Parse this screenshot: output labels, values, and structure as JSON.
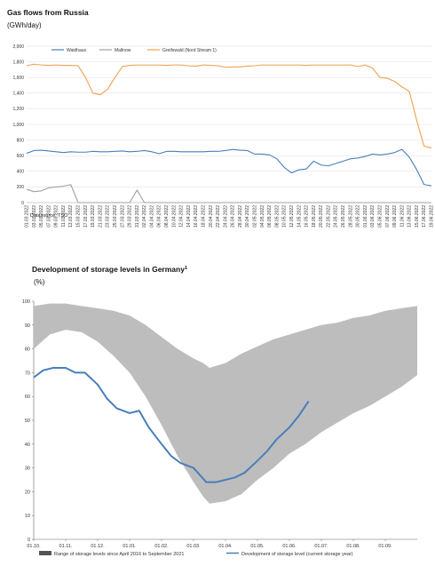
{
  "chart_data": [
    {
      "type": "line",
      "title": "Gas flows from Russia",
      "subtitle": "(GWh/day)",
      "source": "Datasource: TSO",
      "ylim": [
        0,
        2000
      ],
      "y_ticks": [
        "2,000",
        "1,800",
        "1,600",
        "1,400",
        "1,200",
        "1,000",
        "800",
        "600",
        "400",
        "200",
        "0"
      ],
      "y_tick_values": [
        2000,
        1800,
        1600,
        1400,
        1200,
        1000,
        800,
        600,
        400,
        200,
        0
      ],
      "x": [
        "01.03.2022",
        "03.03.2022",
        "05.03.2022",
        "07.03.2022",
        "09.03.2022",
        "11.03.2022",
        "13.03.2022",
        "15.03.2022",
        "17.03.2022",
        "19.03.2022",
        "21.03.2022",
        "23.03.2022",
        "25.03.2022",
        "27.03.2022",
        "29.03.2022",
        "31.03.2022",
        "02.04.2022",
        "04.04.2022",
        "06.04.2022",
        "08.04.2022",
        "10.04.2022",
        "12.04.2022",
        "14.04.2022",
        "16.04.2022",
        "18.04.2022",
        "20.04.2022",
        "22.04.2022",
        "24.04.2022",
        "26.04.2022",
        "28.04.2022",
        "30.04.2022",
        "02.05.2022",
        "04.05.2022",
        "06.05.2022",
        "08.05.2022",
        "10.05.2022",
        "12.05.2022",
        "14.05.2022",
        "16.05.2022",
        "18.05.2022",
        "20.05.2022",
        "22.05.2022",
        "24.05.2022",
        "26.05.2022",
        "28.05.2022",
        "30.05.2022",
        "01.06.2022",
        "03.06.2022",
        "05.06.2022",
        "07.06.2022",
        "09.06.2022",
        "11.06.2022",
        "13.06.2022",
        "15.06.2022",
        "17.06.2022",
        "19.06.2022"
      ],
      "legend": {
        "placement": "top-left"
      },
      "series": [
        {
          "name": "Waidhaus",
          "color": "#4a7ebb",
          "values": [
            630,
            665,
            670,
            660,
            650,
            640,
            650,
            645,
            645,
            655,
            650,
            650,
            655,
            660,
            650,
            655,
            665,
            650,
            625,
            655,
            655,
            650,
            650,
            650,
            650,
            655,
            655,
            665,
            680,
            670,
            665,
            620,
            620,
            610,
            560,
            450,
            380,
            420,
            430,
            530,
            480,
            470,
            500,
            530,
            560,
            570,
            590,
            620,
            610,
            620,
            640,
            680,
            580,
            420,
            230,
            215
          ]
        },
        {
          "name": "Mallnow",
          "color": "#a0a0a0",
          "values": [
            170,
            140,
            150,
            190,
            200,
            210,
            230,
            0,
            0,
            0,
            0,
            0,
            0,
            0,
            0,
            160,
            0,
            0,
            0,
            0,
            0,
            0,
            0,
            0,
            0,
            0,
            0,
            0,
            0,
            0,
            0,
            0,
            0,
            0,
            0,
            0,
            0,
            0,
            0,
            0,
            0,
            0,
            0,
            0,
            0,
            0,
            0,
            0,
            0,
            0,
            0,
            0,
            0,
            0,
            0,
            0
          ]
        },
        {
          "name": "Greifswald (Nord Stream 1)",
          "color": "#f0a050",
          "values": [
            1750,
            1770,
            1760,
            1755,
            1760,
            1755,
            1755,
            1750,
            1600,
            1400,
            1380,
            1450,
            1600,
            1740,
            1755,
            1760,
            1760,
            1760,
            1760,
            1755,
            1760,
            1760,
            1750,
            1745,
            1760,
            1755,
            1750,
            1730,
            1735,
            1735,
            1745,
            1750,
            1760,
            1760,
            1760,
            1760,
            1760,
            1760,
            1755,
            1760,
            1760,
            1760,
            1760,
            1760,
            1760,
            1740,
            1760,
            1720,
            1600,
            1590,
            1550,
            1480,
            1420,
            1050,
            720,
            700
          ]
        }
      ]
    },
    {
      "type": "area",
      "title": "Development of storage levels in Germany",
      "title_sup": "1",
      "subtitle": "(%)",
      "ylim": [
        0,
        100
      ],
      "y_ticks": [
        0,
        10,
        20,
        30,
        40,
        50,
        60,
        70,
        80,
        90,
        100
      ],
      "x_ticks": [
        "01.10.",
        "01.11.",
        "01.12.",
        "01.01.",
        "01.02.",
        "01.03.",
        "01.04.",
        "01.05.",
        "01.06.",
        "01.07.",
        "01.08.",
        "01.09."
      ],
      "x_range_months": [
        0,
        12
      ],
      "legend": {
        "placement": "bottom"
      },
      "series": [
        {
          "name": "Range of storage levels since April 2016 to September 2021",
          "color": "#bdbdbd",
          "x_months": [
            0,
            0.5,
            1,
            1.5,
            2,
            2.5,
            3,
            3.5,
            4,
            4.5,
            5,
            5.3,
            5.5,
            6,
            6.5,
            7,
            7.5,
            8,
            8.5,
            9,
            9.5,
            10,
            10.5,
            11,
            11.5,
            12
          ],
          "upper": [
            98,
            99,
            99,
            98,
            97,
            96,
            94,
            90,
            85,
            80,
            76,
            74,
            72,
            74,
            78,
            81,
            84,
            86,
            88,
            90,
            91,
            93,
            94,
            96,
            97,
            98
          ],
          "lower": [
            80,
            86,
            88,
            87,
            83,
            77,
            70,
            60,
            48,
            35,
            24,
            18,
            15,
            16,
            19,
            25,
            30,
            36,
            40,
            45,
            49,
            53,
            56,
            60,
            64,
            69
          ]
        },
        {
          "name": "Development of storage level (current storage year)",
          "color": "#4a7ebb",
          "x_months": [
            0,
            0.3,
            0.6,
            1,
            1.3,
            1.6,
            2,
            2.3,
            2.6,
            3,
            3.3,
            3.6,
            4,
            4.3,
            4.6,
            5,
            5.2,
            5.4,
            5.7,
            6,
            6.3,
            6.6,
            7,
            7.3,
            7.6,
            8,
            8.3,
            8.6
          ],
          "values": [
            68,
            71,
            72,
            72,
            70,
            70,
            65,
            59,
            55,
            53,
            54,
            47,
            40,
            35,
            32,
            30,
            27,
            24,
            24,
            25,
            26,
            28,
            33,
            37,
            42,
            47,
            52,
            58
          ]
        }
      ]
    }
  ]
}
